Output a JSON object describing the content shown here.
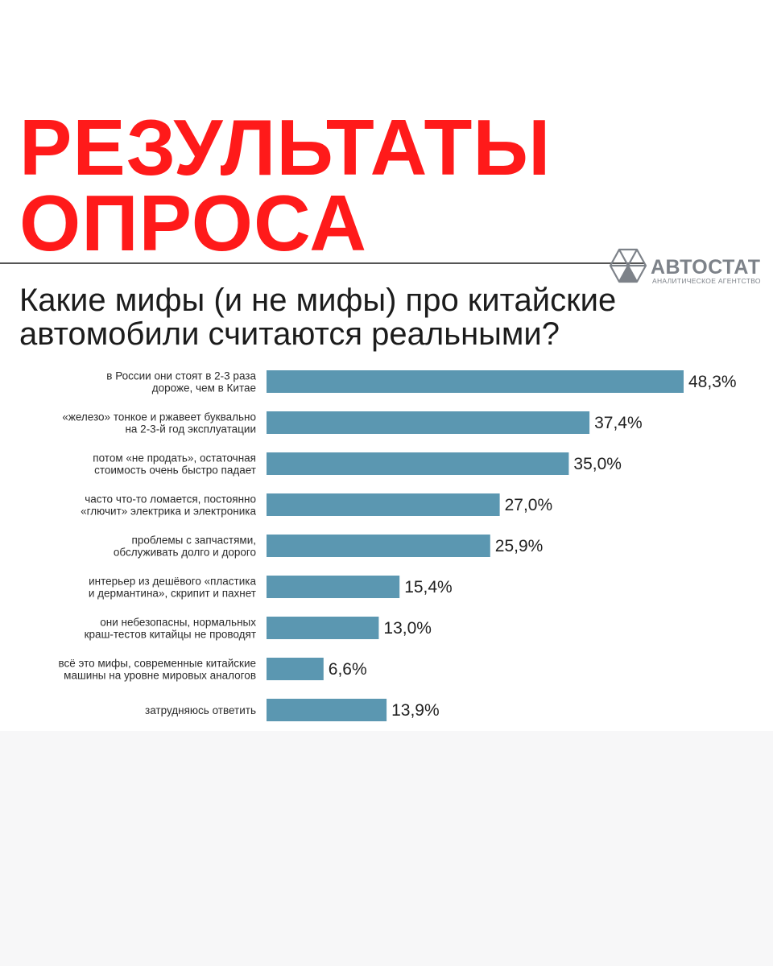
{
  "header": {
    "title_line1": "РЕЗУЛЬТАТЫ",
    "title_line2": "ОПРОСА",
    "question_line1": "Какие мифы (и не мифы) про китайские",
    "question_line2": "автомобили считаются реальными?"
  },
  "logo": {
    "name": "АВТОСТАТ",
    "subtitle": "АНАЛИТИЧЕСКОЕ АГЕНТСТВО",
    "icon": "hexagon-triangles-icon",
    "color": "#7d8289"
  },
  "colors": {
    "headline": "#ff1a1a",
    "bar": "#5b97b1"
  },
  "chart_data": {
    "type": "bar",
    "orientation": "horizontal",
    "categories": [
      [
        "в России они стоят в 2-3 раза",
        "дороже, чем в Китае"
      ],
      [
        "«железо» тонкое и ржавеет буквально",
        "на 2-3-й год эксплуатации"
      ],
      [
        "потом «не продать», остаточная",
        "стоимость очень быстро падает"
      ],
      [
        "часто что-то ломается, постоянно",
        "«глючит» электрика и электроника"
      ],
      [
        "проблемы с запчастями,",
        "обслуживать долго и дорого"
      ],
      [
        "интерьер из дешёвого «пластика",
        "и дермантина», скрипит и пахнет"
      ],
      [
        "они небезопасны, нормальных",
        "краш-тестов китайцы не проводят"
      ],
      [
        "всё это мифы, современные китайские",
        "машины на уровне мировых аналогов"
      ],
      [
        "затрудняюсь ответить"
      ]
    ],
    "values": [
      48.3,
      37.4,
      35.0,
      27.0,
      25.9,
      15.4,
      13.0,
      6.6,
      13.9
    ],
    "value_labels": [
      "48,3%",
      "37,4%",
      "35,0%",
      "27,0%",
      "25,9%",
      "15,4%",
      "13,0%",
      "6,6%",
      "13,9%"
    ],
    "xlim": [
      0,
      48.3
    ],
    "grid": false
  }
}
